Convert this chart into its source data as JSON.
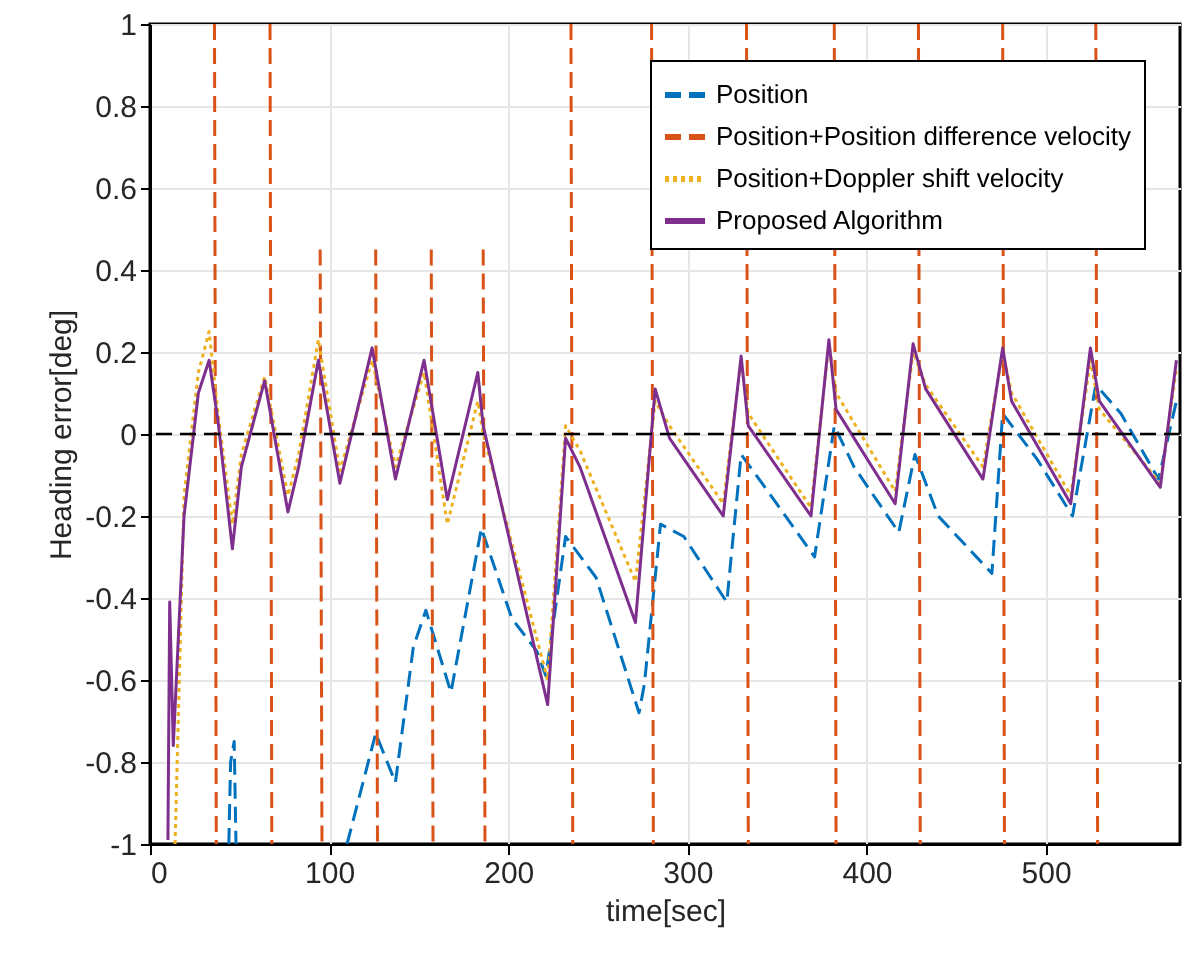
{
  "chart_data": {
    "type": "line",
    "xlabel": "time[sec]",
    "ylabel": "Heading error[deg]",
    "xlim": [
      0,
      575
    ],
    "ylim": [
      -1,
      1
    ],
    "xticks": [
      0,
      100,
      200,
      300,
      400,
      500
    ],
    "yticks": [
      -1,
      -0.8,
      -0.6,
      -0.4,
      -0.2,
      0,
      0.2,
      0.4,
      0.6,
      0.8,
      1
    ],
    "grid": true,
    "legend": "top right",
    "marker": "none",
    "ref_lines": [
      {
        "axis": "y",
        "value": 0,
        "color": "#000000",
        "line_style": "dashed"
      }
    ],
    "series": [
      {
        "name": "Position",
        "color": "#0072bd",
        "line_style": "dashed",
        "x": [
          44,
          45,
          47,
          48,
          49,
          110,
          126,
          137,
          147,
          154,
          168,
          185,
          202,
          216,
          221,
          232,
          249,
          273,
          276,
          285,
          298,
          322,
          330,
          345,
          371,
          382,
          393,
          418,
          427,
          440,
          470,
          476,
          495,
          515,
          528,
          542,
          563,
          573
        ],
        "values": [
          -1,
          -0.8,
          -0.75,
          -1,
          null,
          -1,
          -0.73,
          -0.85,
          -0.52,
          -0.43,
          -0.63,
          -0.23,
          -0.45,
          -0.53,
          -0.59,
          -0.25,
          -0.35,
          -0.68,
          -0.61,
          -0.22,
          -0.25,
          -0.41,
          -0.05,
          -0.14,
          -0.3,
          0.02,
          -0.08,
          -0.24,
          -0.05,
          -0.2,
          -0.34,
          0.05,
          -0.06,
          -0.2,
          0.12,
          0.05,
          -0.11,
          0.08
        ]
      },
      {
        "name": "Position+Position difference velocity",
        "color": "#d95319",
        "line_style": "dashed",
        "x": [
          36,
          37,
          38,
          67,
          68,
          69,
          95,
          96,
          97,
          126,
          127,
          128,
          157,
          158,
          159,
          186,
          187,
          188,
          235,
          236,
          237,
          280,
          281,
          282,
          333,
          334,
          335,
          382,
          383,
          384,
          429,
          430,
          431,
          476,
          477,
          478,
          528,
          529
        ],
        "values": [
          1,
          -1,
          null,
          1,
          -1,
          null,
          0.45,
          -1,
          null,
          0.45,
          -1,
          null,
          0.45,
          -1,
          null,
          0.45,
          -1,
          null,
          1,
          -1,
          null,
          1,
          -1,
          null,
          1,
          -1,
          null,
          1,
          -1,
          null,
          1,
          -1,
          null,
          1,
          -1,
          null,
          1,
          -1
        ]
      },
      {
        "name": "Position+Doppler shift velocity",
        "color": "#edb120",
        "line_style": "dotted",
        "x": [
          14,
          19,
          27,
          33,
          38,
          46,
          51,
          64,
          77,
          83,
          94,
          106,
          124,
          137,
          153,
          166,
          183,
          186,
          222,
          232,
          240,
          271,
          282,
          290,
          320,
          330,
          334,
          369,
          379,
          383,
          416,
          426,
          433,
          465,
          476,
          481,
          514,
          525,
          530,
          564,
          573
        ],
        "values": [
          -1,
          -0.15,
          0.15,
          0.25,
          0.05,
          -0.22,
          -0.05,
          0.14,
          -0.15,
          -0.05,
          0.23,
          -0.09,
          0.18,
          -0.08,
          0.15,
          -0.22,
          0.08,
          0.0,
          -0.6,
          0.02,
          -0.04,
          -0.36,
          0.08,
          0.02,
          -0.17,
          0.18,
          0.05,
          -0.18,
          0.22,
          0.1,
          -0.14,
          0.2,
          0.12,
          -0.08,
          0.2,
          0.1,
          -0.15,
          0.18,
          0.06,
          -0.12,
          0.16
        ]
      },
      {
        "name": "Proposed Algorithm",
        "color": "#7e2f8e",
        "line_style": "solid",
        "x": [
          10,
          11,
          13,
          19,
          27,
          33,
          38,
          46,
          51,
          64,
          77,
          83,
          94,
          106,
          124,
          137,
          153,
          166,
          183,
          186,
          222,
          232,
          240,
          271,
          282,
          290,
          320,
          330,
          334,
          369,
          379,
          383,
          416,
          426,
          433,
          465,
          476,
          481,
          514,
          525,
          530,
          564,
          573
        ],
        "values": [
          -0.99,
          -0.41,
          -0.76,
          -0.2,
          0.1,
          0.18,
          0.03,
          -0.28,
          -0.08,
          0.13,
          -0.19,
          -0.08,
          0.18,
          -0.12,
          0.21,
          -0.11,
          0.18,
          -0.16,
          0.15,
          0.02,
          -0.66,
          -0.01,
          -0.08,
          -0.46,
          0.11,
          -0.01,
          -0.2,
          0.19,
          0.02,
          -0.2,
          0.23,
          0.06,
          -0.17,
          0.22,
          0.11,
          -0.11,
          0.21,
          0.08,
          -0.17,
          0.21,
          0.08,
          -0.13,
          0.18
        ]
      }
    ]
  }
}
